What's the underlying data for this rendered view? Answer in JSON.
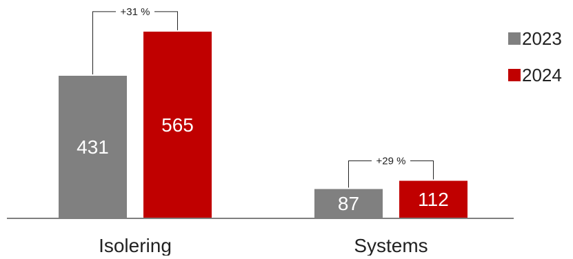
{
  "chart_data": {
    "type": "bar",
    "title": "",
    "xlabel": "",
    "ylabel": "",
    "categories": [
      "Isolering",
      "Systems"
    ],
    "series": [
      {
        "name": "2023",
        "values": [
          431,
          87
        ],
        "color": "#808080"
      },
      {
        "name": "2024",
        "values": [
          565,
          112
        ],
        "color": "#c00000"
      }
    ],
    "growth_annotations": [
      "+31 %",
      "+29 %"
    ],
    "ylim": [
      0,
      620
    ],
    "grid": false,
    "legend_position": "top-right",
    "value_label_color": "#ffffff",
    "axis_color": "#7f7f7f"
  }
}
